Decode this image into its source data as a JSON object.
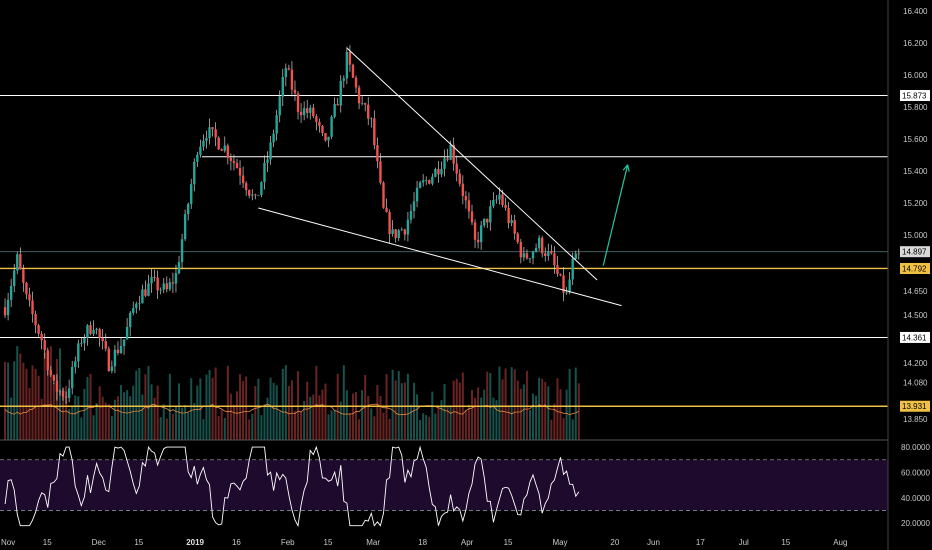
{
  "chart_data": {
    "type": "candlestick",
    "main_pane": {
      "yaxis_ticks": [
        "16.400",
        "16.200",
        "16.000",
        "15.800",
        "15.600",
        "15.400",
        "15.200",
        "15.000",
        "14.650",
        "14.500",
        "14.200",
        "14.080",
        "13.850"
      ],
      "ylim": [
        13.72,
        16.47
      ],
      "price_badges": [
        {
          "value": 14.897,
          "label": "14.897",
          "color": "#d9d9d9"
        },
        {
          "value": 14.792,
          "label": "14.792",
          "color": "#f0c142"
        }
      ],
      "horizontal_levels": [
        {
          "value": 15.873,
          "label": "15.873",
          "color": "#ffffff"
        },
        {
          "value": 15.49,
          "label": "",
          "color": "#ffffff"
        },
        {
          "value": 14.792,
          "label": "14.792",
          "color": "#f0c142"
        },
        {
          "value": 14.361,
          "label": "14.361",
          "color": "#ffffff"
        },
        {
          "value": 13.931,
          "label": "13.931",
          "color": "#f0c142"
        }
      ],
      "trendlines": [
        {
          "from": [
            "2019-02-21",
            16.17
          ],
          "to": [
            "2019-05-14",
            14.72
          ],
          "color": "#ffffff"
        },
        {
          "from": [
            "2019-01-23",
            15.17
          ],
          "to": [
            "2019-05-22",
            14.56
          ],
          "color": "#ffffff"
        }
      ],
      "arrow": {
        "from": [
          "2019-05-16",
          14.81
        ],
        "to": [
          "2019-05-24",
          15.44
        ],
        "color": "#26c6a0"
      },
      "volume_axis_note": "volume histogram overlaid at bottom of main pane"
    },
    "x_tick_labels": [
      "Nov",
      "15",
      "Dec",
      "15",
      "2019",
      "16",
      "Feb",
      "15",
      "Mar",
      "18",
      "Apr",
      "15",
      "May",
      "20",
      "Jun",
      "17",
      "Jul",
      "15",
      "Aug"
    ],
    "rsi_pane": {
      "yaxis_ticks": [
        "80.0000",
        "60.0000",
        "40.0000",
        "20.0000"
      ],
      "ylim": [
        13,
        84
      ],
      "bands": [
        70,
        30
      ],
      "band_fill": "#1e0a2d"
    },
    "colors": {
      "up": "#26a69a",
      "down": "#ef5350",
      "wick": "#cfcfcf",
      "rsi_line": "#ffffff",
      "gold": "#f0c142"
    }
  }
}
